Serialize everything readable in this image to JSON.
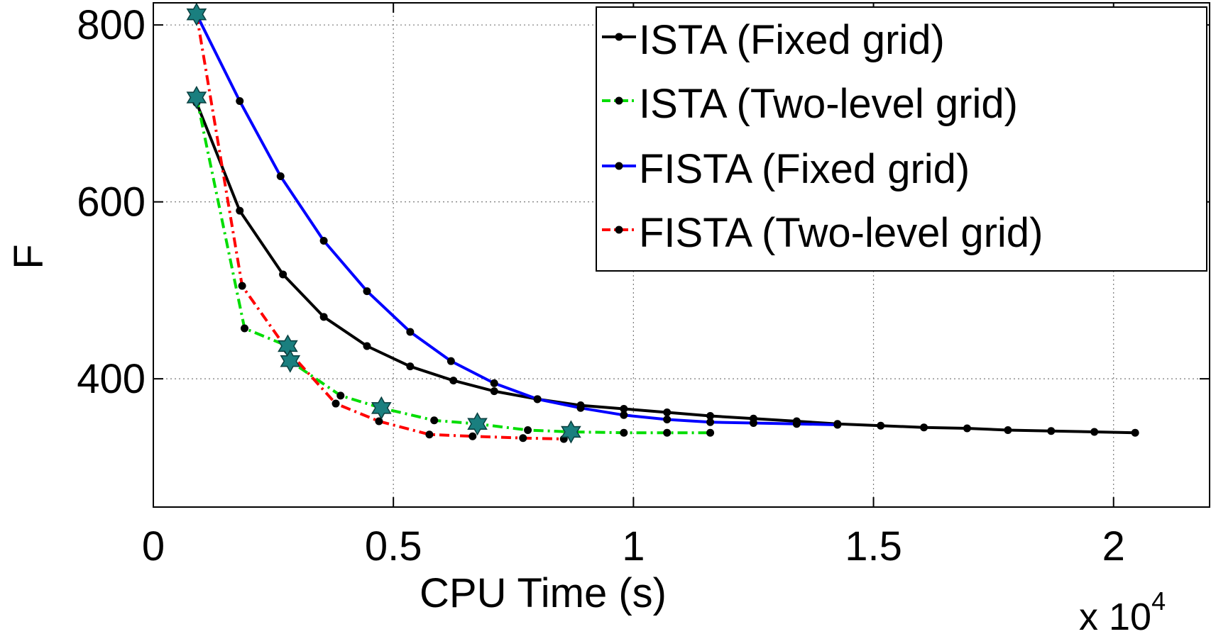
{
  "chart_data": {
    "type": "line",
    "title": "",
    "xlabel": "CPU Time (s)",
    "ylabel": "F",
    "x_scale_label": "x 10",
    "x_scale_exponent": "4",
    "xlim": [
      0,
      2.2
    ],
    "ylim": [
      255,
      825
    ],
    "xticks": [
      0,
      0.5,
      1,
      1.5,
      2
    ],
    "xtick_labels": [
      "0",
      "0.5",
      "1",
      "1.5",
      "2"
    ],
    "yticks": [
      400,
      600,
      800
    ],
    "ytick_labels": [
      "400",
      "600",
      "800"
    ],
    "grid": true,
    "legend_position": "top-right",
    "series": [
      {
        "name": "ISTA (Fixed grid)",
        "color": "#000000",
        "linestyle": "solid",
        "x": [
          0.09,
          0.18,
          0.27,
          0.355,
          0.445,
          0.535,
          0.625,
          0.71,
          0.8,
          0.89,
          0.98,
          1.07,
          1.16,
          1.25,
          1.34,
          1.425,
          1.515,
          1.605,
          1.695,
          1.78,
          1.87,
          1.96,
          2.045
        ],
        "y": [
          712,
          590,
          518,
          470,
          437,
          414,
          398,
          386,
          377,
          370,
          366,
          362,
          358,
          355,
          352,
          349,
          347,
          345,
          344,
          342,
          341,
          340,
          339
        ]
      },
      {
        "name": "ISTA (Two-level grid)",
        "color": "#00dd00",
        "linestyle": "dashdot",
        "x": [
          0.09,
          0.19,
          0.28,
          0.285,
          0.39,
          0.475,
          0.585,
          0.675,
          0.78,
          0.87,
          0.98,
          1.07,
          1.16
        ],
        "y": [
          718,
          457,
          437,
          420,
          381,
          367,
          353,
          349,
          342,
          340,
          339,
          339,
          339
        ],
        "stars": [
          [
            0.09,
            718
          ],
          [
            0.28,
            437
          ],
          [
            0.285,
            420
          ],
          [
            0.475,
            367
          ],
          [
            0.675,
            349
          ],
          [
            0.87,
            340
          ]
        ]
      },
      {
        "name": "FISTA (Fixed grid)",
        "color": "#0000ff",
        "linestyle": "solid",
        "x": [
          0.09,
          0.18,
          0.265,
          0.355,
          0.445,
          0.535,
          0.62,
          0.71,
          0.8,
          0.89,
          0.98,
          1.07,
          1.16,
          1.25,
          1.34,
          1.425
        ],
        "y": [
          812,
          714,
          629,
          556,
          499,
          453,
          420,
          395,
          377,
          367,
          359,
          354,
          351,
          350,
          349,
          348
        ],
        "stars": [
          [
            0.09,
            812
          ]
        ]
      },
      {
        "name": "FISTA (Two-level grid)",
        "color": "#ff0000",
        "linestyle": "dashdot",
        "x": [
          0.09,
          0.185,
          0.28,
          0.38,
          0.47,
          0.575,
          0.665,
          0.77,
          0.855
        ],
        "y": [
          812,
          505,
          432,
          372,
          352,
          337,
          335,
          333,
          332
        ]
      }
    ]
  }
}
